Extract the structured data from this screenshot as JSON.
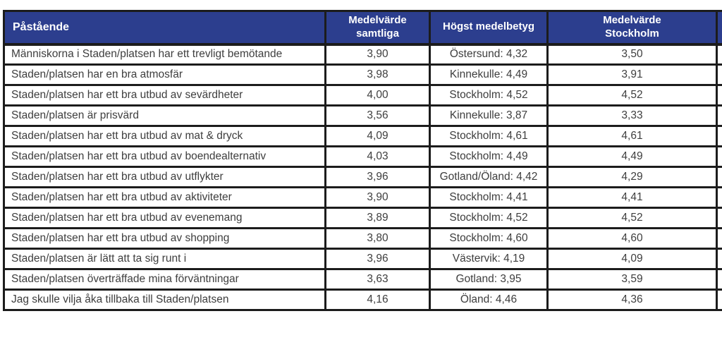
{
  "colors": {
    "header_bg": "#2c3e8e",
    "border": "#1c1c1c",
    "body_text": "#3e3e3e",
    "header_text": "#ffffff",
    "row_bg": "#ffffff"
  },
  "table": {
    "columns": [
      {
        "id": "pastaende",
        "label": "Påstående"
      },
      {
        "id": "medelvarde-samtliga",
        "label": "Medelvärde\nsamtliga"
      },
      {
        "id": "hogst-medelbetyg",
        "label": "Högst medelbetyg"
      },
      {
        "id": "medelvarde-stockholm",
        "label": "Medelvärde\nStockholm"
      },
      {
        "id": "truncated-column",
        "label": ""
      }
    ],
    "rows": [
      [
        "Människorna i Staden/platsen har ett trevligt bemötande",
        "3,90",
        "Östersund: 4,32",
        "3,50",
        ""
      ],
      [
        "Staden/platsen har en bra atmosfär",
        "3,98",
        "Kinnekulle: 4,49",
        "3,91",
        ""
      ],
      [
        "Staden/platsen har ett bra utbud av sevärdheter",
        "4,00",
        "Stockholm: 4,52",
        "4,52",
        ""
      ],
      [
        "Staden/platsen är prisvärd",
        "3,56",
        "Kinnekulle: 3,87",
        "3,33",
        ""
      ],
      [
        "Staden/platsen har ett bra utbud av mat & dryck",
        "4,09",
        "Stockholm: 4,61",
        "4,61",
        ""
      ],
      [
        "Staden/platsen har ett bra utbud av boendealternativ",
        "4,03",
        "Stockholm: 4,49",
        "4,49",
        ""
      ],
      [
        "Staden/platsen har ett bra utbud av utflykter",
        "3,96",
        "Gotland/Öland: 4,42",
        "4,29",
        ""
      ],
      [
        "Staden/platsen har ett bra utbud av aktiviteter",
        "3,90",
        "Stockholm: 4,41",
        "4,41",
        ""
      ],
      [
        "Staden/platsen har ett bra utbud av evenemang",
        "3,89",
        "Stockholm: 4,52",
        "4,52",
        ""
      ],
      [
        "Staden/platsen har ett bra utbud av shopping",
        "3,80",
        "Stockholm: 4,60",
        "4,60",
        ""
      ],
      [
        "Staden/platsen är lätt att ta sig runt i",
        "3,96",
        "Västervik: 4,19",
        "4,09",
        ""
      ],
      [
        "Staden/platsen överträffade mina förväntningar",
        "3,63",
        "Gotland: 3,95",
        "3,59",
        ""
      ],
      [
        "Jag skulle vilja åka tillbaka till Staden/platsen",
        "4,16",
        "Öland: 4,46",
        "4,36",
        ""
      ]
    ]
  }
}
